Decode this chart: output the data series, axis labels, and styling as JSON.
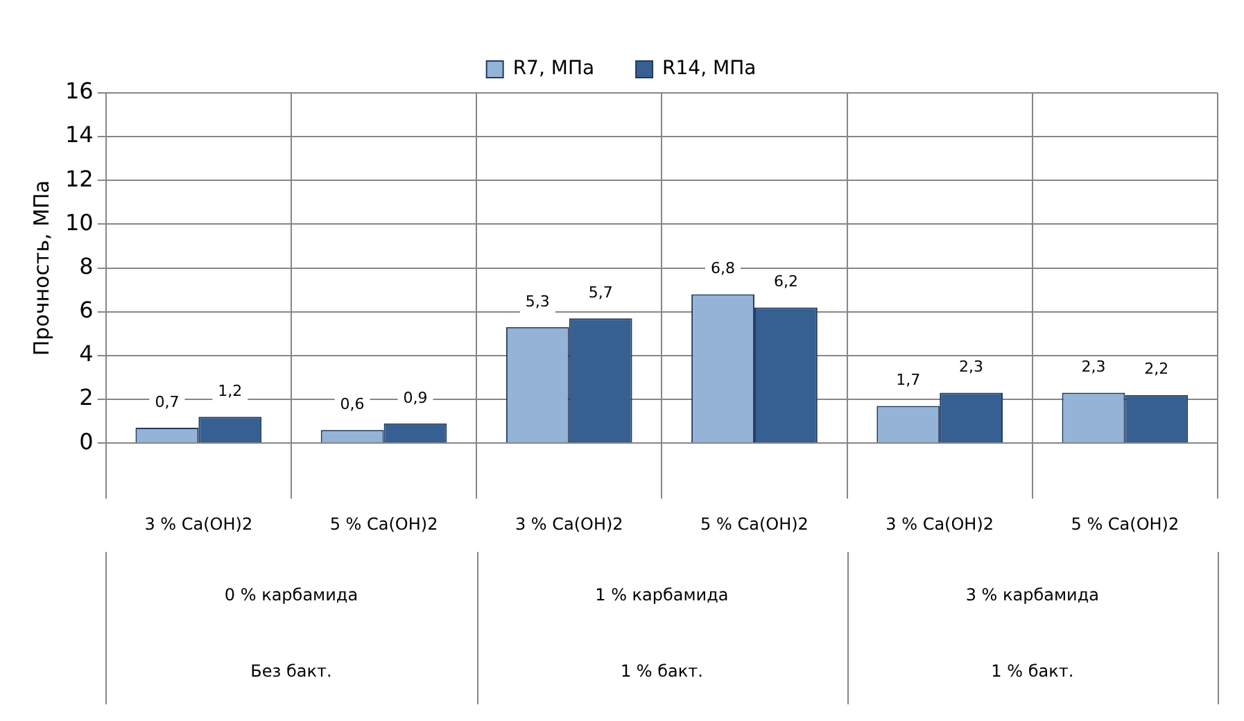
{
  "chart_data": {
    "type": "bar",
    "ylabel": "Прочность, МПа",
    "categories": [
      "3 % Ca(OH)2",
      "5 % Ca(OH)2",
      "3 % Ca(OH)2",
      "5 % Ca(OH)2",
      "3 % Ca(OH)2",
      "5 % Ca(OH)2"
    ],
    "series": [
      {
        "name": "R7, МПа",
        "color": "#95b3d7",
        "values": [
          0.7,
          0.6,
          5.3,
          6.8,
          1.7,
          2.3
        ],
        "value_labels": [
          "0,7",
          "0,6",
          "5,3",
          "6,8",
          "1,7",
          "2,3"
        ]
      },
      {
        "name": "R14, МПа",
        "color": "#366092",
        "values": [
          1.2,
          0.9,
          5.7,
          6.2,
          2.3,
          2.2
        ],
        "value_labels": [
          "1,2",
          "0,9",
          "5,7",
          "6,2",
          "2,3",
          "2,2"
        ]
      }
    ],
    "annotations": [
      "0 % карбамида",
      "1 % карбамида",
      "3 % карбамида",
      "Без бакт.",
      "1 % бакт.",
      "1 % бакт."
    ],
    "ylim": [
      0,
      16
    ],
    "yticks": [
      0,
      2,
      4,
      6,
      8,
      10,
      12,
      14,
      16
    ],
    "grid": true,
    "legend": "top"
  }
}
